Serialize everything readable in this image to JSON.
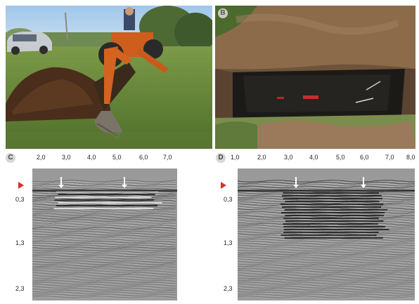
{
  "panels": {
    "a": {
      "letter": ""
    },
    "b": {
      "letter": "B"
    },
    "c": {
      "letter": "C",
      "x_ticks": [
        "2,0",
        "3,0",
        "4,0",
        "5,0",
        "6,0",
        "7,0"
      ],
      "depth_ticks": [
        "0,3",
        "1,3",
        "2,3"
      ]
    },
    "d": {
      "letter": "D",
      "x_ticks": [
        "1,0",
        "2,0",
        "3,0",
        "4,0",
        "5,0",
        "6,0",
        "7,0",
        "8,0"
      ],
      "depth_ticks": [
        "0,3",
        "1,3",
        "2,3"
      ]
    }
  },
  "colors": {
    "marker": "#d9302a"
  }
}
